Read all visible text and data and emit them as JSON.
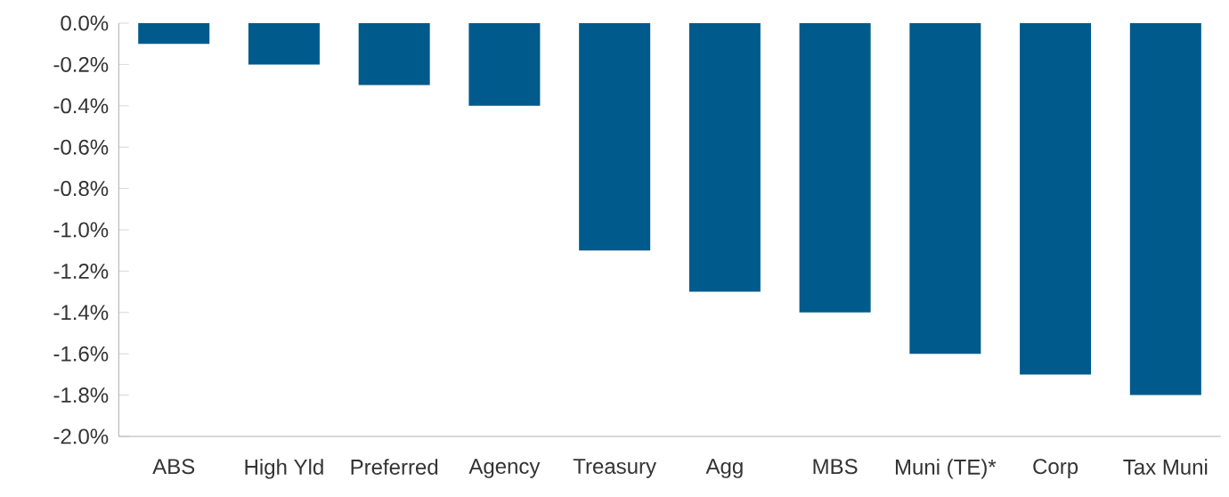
{
  "chart_data": {
    "type": "bar",
    "categories": [
      "ABS",
      "High Yld",
      "Preferred",
      "Agency",
      "Treasury",
      "Agg",
      "MBS",
      "Muni (TE)*",
      "Corp",
      "Tax Muni"
    ],
    "values": [
      -0.1,
      -0.2,
      -0.3,
      -0.4,
      -1.1,
      -1.3,
      -1.4,
      -1.6,
      -1.7,
      -1.8
    ],
    "color": "#005a8c",
    "ylim": [
      -2.0,
      0.0
    ],
    "yticks": [
      {
        "value": 0.0,
        "label": "0.0%"
      },
      {
        "value": -0.2,
        "label": "-0.2%"
      },
      {
        "value": -0.4,
        "label": "-0.4%"
      },
      {
        "value": -0.6,
        "label": "-0.6%"
      },
      {
        "value": -0.8,
        "label": "-0.8%"
      },
      {
        "value": -1.0,
        "label": "-1.0%"
      },
      {
        "value": -1.2,
        "label": "-1.2%"
      },
      {
        "value": -1.4,
        "label": "-1.4%"
      },
      {
        "value": -1.6,
        "label": "-1.6%"
      },
      {
        "value": -1.8,
        "label": "-1.8%"
      },
      {
        "value": -2.0,
        "label": "-2.0%"
      }
    ],
    "grid": false
  }
}
